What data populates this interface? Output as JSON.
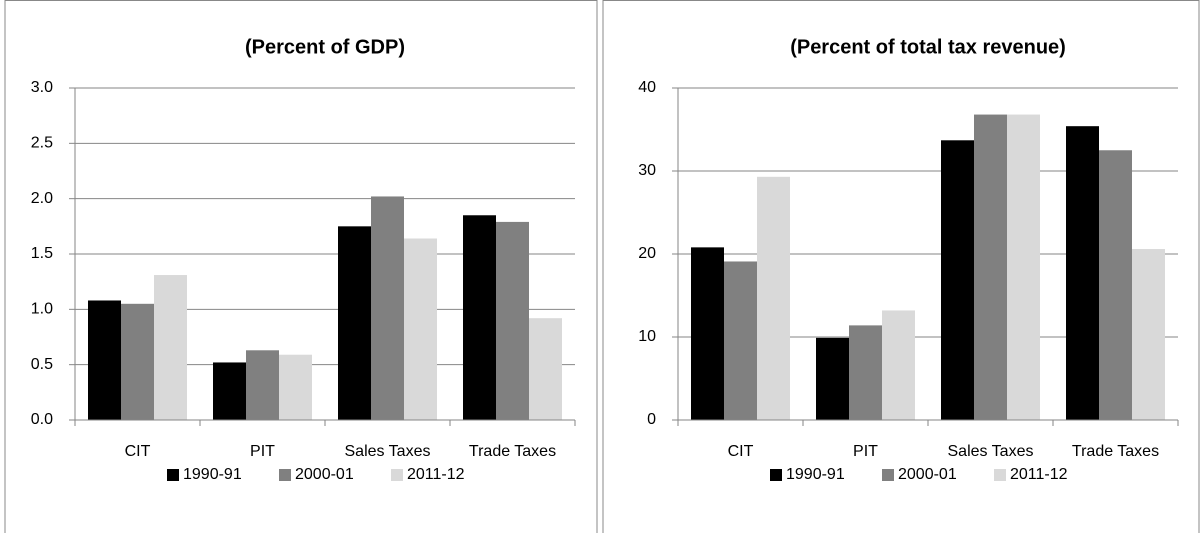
{
  "chart_data": [
    {
      "type": "bar",
      "title": "(Percent of GDP)",
      "categories": [
        "CIT",
        "PIT",
        "Sales Taxes",
        "Trade Taxes"
      ],
      "series": [
        {
          "name": "1990-91",
          "color": "#000000",
          "values": [
            1.08,
            0.52,
            1.75,
            1.85
          ]
        },
        {
          "name": "2000-01",
          "color": "#808080",
          "values": [
            1.05,
            0.63,
            2.02,
            1.79
          ]
        },
        {
          "name": "2011-12",
          "color": "#d9d9d9",
          "values": [
            1.31,
            0.59,
            1.64,
            0.92
          ]
        }
      ],
      "ylim": [
        0,
        3
      ],
      "yticks": [
        {
          "value": 0,
          "label": "0.0"
        },
        {
          "value": 0.5,
          "label": "0.5"
        },
        {
          "value": 1,
          "label": "1.0"
        },
        {
          "value": 1.5,
          "label": "1.5"
        },
        {
          "value": 2,
          "label": "2.0"
        },
        {
          "value": 2.5,
          "label": "2.5"
        },
        {
          "value": 3,
          "label": "3.0"
        }
      ],
      "grid": true,
      "legend": "bottom"
    },
    {
      "type": "bar",
      "title": "(Percent of total tax revenue)",
      "categories": [
        "CIT",
        "PIT",
        "Sales Taxes",
        "Trade Taxes"
      ],
      "series": [
        {
          "name": "1990-91",
          "color": "#000000",
          "values": [
            20.8,
            9.9,
            33.7,
            35.4
          ]
        },
        {
          "name": "2000-01",
          "color": "#808080",
          "values": [
            19.1,
            11.4,
            36.8,
            32.5
          ]
        },
        {
          "name": "2011-12",
          "color": "#d9d9d9",
          "values": [
            29.3,
            13.2,
            36.8,
            20.6
          ]
        }
      ],
      "ylim": [
        0,
        40
      ],
      "yticks": [
        0,
        10,
        20,
        30,
        40
      ],
      "grid": true,
      "legend": "bottom"
    }
  ]
}
